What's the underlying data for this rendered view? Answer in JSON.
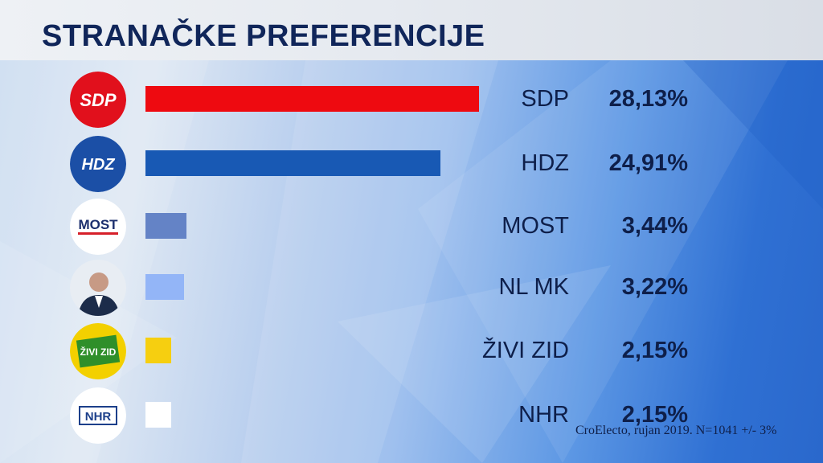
{
  "title": "STRANAČKE PREFERENCIJE",
  "source": "CroElecto, rujan 2019. N=1041 +/- 3%",
  "chart_data": {
    "type": "bar",
    "orientation": "horizontal",
    "title": "STRANAČKE PREFERENCIJE",
    "categories": [
      "SDP",
      "HDZ",
      "MOST",
      "NL MK",
      "ŽIVI ZID",
      "NHR"
    ],
    "values": [
      28.13,
      24.91,
      3.44,
      3.22,
      2.15,
      2.15
    ],
    "value_labels": [
      "28,13%",
      "24,91%",
      "3,44%",
      "3,22%",
      "2,15%",
      "2,15%"
    ],
    "colors": [
      "#ee0a10",
      "#1859b4",
      "#6483c6",
      "#93b5f7",
      "#f6cf10",
      "#ffffff"
    ],
    "logos": [
      {
        "text": "SDP",
        "icon": "sdp-logo-icon",
        "bg": "#e1101c",
        "fg": "#ffffff"
      },
      {
        "text": "HDZ",
        "icon": "hdz-logo-icon",
        "bg": "#1b4fa6",
        "fg": "#ffffff"
      },
      {
        "text": "MOST",
        "icon": "most-logo-icon",
        "bg": "#ffffff",
        "fg": "#1c2f6e"
      },
      {
        "text": "",
        "icon": "candidate-portrait-icon",
        "bg": "#e8edf3",
        "fg": "#1c2c4a"
      },
      {
        "text": "ŽIVI ZID",
        "icon": "zivi-zid-logo-icon",
        "bg": "#f3d000",
        "fg": "#ffffff"
      },
      {
        "text": "NHR",
        "icon": "nhr-logo-icon",
        "bg": "#ffffff",
        "fg": "#1c3f8a"
      }
    ]
  }
}
